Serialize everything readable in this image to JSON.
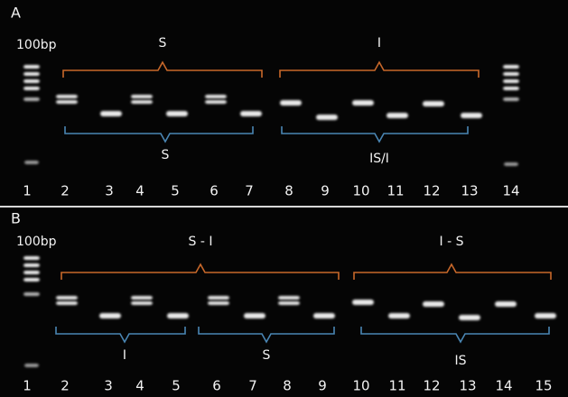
{
  "panels": [
    {
      "label": "A",
      "marker": "100bp",
      "top_brackets": [
        "S",
        "I"
      ],
      "bottom_brackets": [
        "S",
        "IS/I"
      ],
      "lanes": [
        "1",
        "2",
        "3",
        "4",
        "5",
        "6",
        "7",
        "8",
        "9",
        "10",
        "11",
        "12",
        "13",
        "14"
      ]
    },
    {
      "label": "B",
      "marker": "100bp",
      "top_brackets": [
        "S - I",
        "I - S"
      ],
      "bottom_brackets": [
        "I",
        "S",
        "IS"
      ],
      "lanes": [
        "1",
        "2",
        "3",
        "4",
        "5",
        "6",
        "7",
        "8",
        "9",
        "10",
        "11",
        "12",
        "13",
        "14",
        "15"
      ]
    }
  ]
}
